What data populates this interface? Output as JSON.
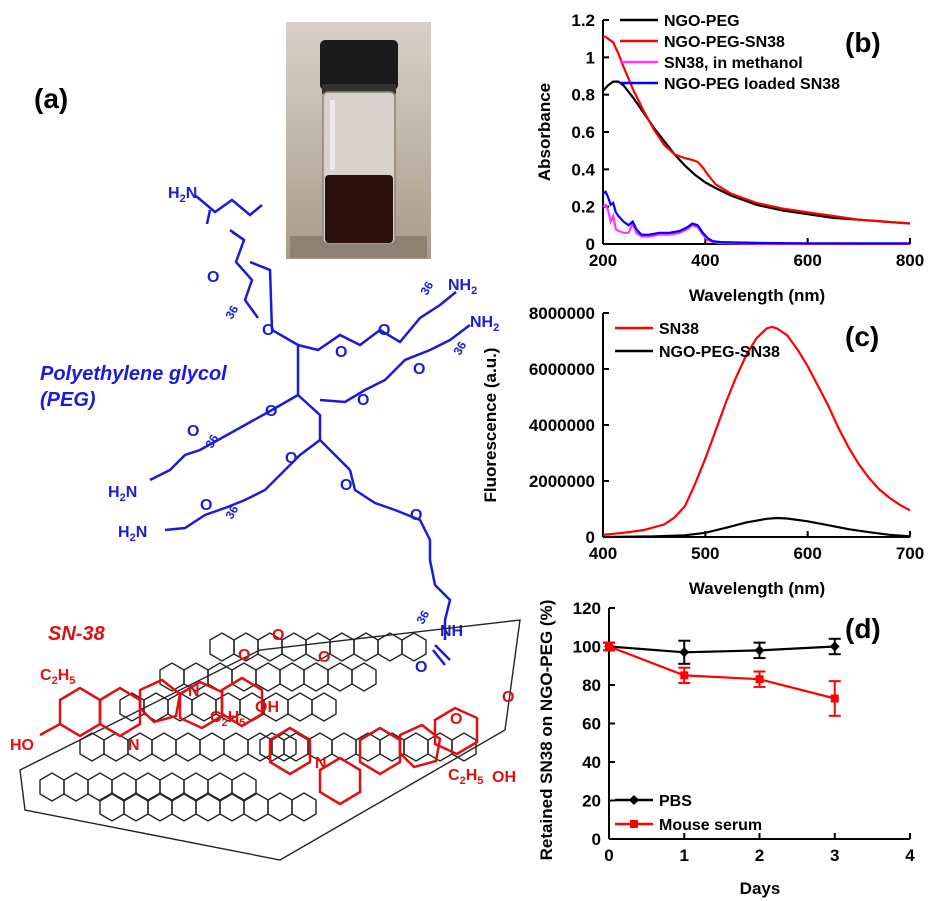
{
  "panel_a": {
    "label": "(a)",
    "peg_label_line1": "Polyethylene glycol",
    "peg_label_line2": "(PEG)",
    "sn38_label": "SN-38",
    "repeat_unit": "36",
    "amine_h2n": "H",
    "amine_suffix": "N",
    "nh": "NH",
    "o": "O",
    "oh": "OH",
    "ho": "HO",
    "n": "N",
    "ethyl": "C",
    "ethyl_sub1": "2",
    "ethyl_sub2": "H",
    "ethyl_sub3": "5",
    "colors": {
      "peg": "#1b1bd6",
      "sn38": "#e01010",
      "graphene": "#222222",
      "vial_liquid": "#2a0f0a",
      "vial_cap": "#1a1a1a"
    }
  },
  "chart_data": [
    {
      "panel": "(b)",
      "type": "line",
      "xlabel": "Wavelength (nm)",
      "ylabel": "Absorbance",
      "xlim": [
        200,
        800
      ],
      "ylim": [
        0,
        1.2
      ],
      "xticks": [
        "200",
        "400",
        "600",
        "800"
      ],
      "yticks": [
        "0",
        "0.2",
        "0.4",
        "0.6",
        "0.8",
        "1",
        "1.2"
      ],
      "legend_position": "top-left",
      "series": [
        {
          "name": "NGO-PEG",
          "color": "#000000",
          "x": [
            200,
            210,
            220,
            230,
            240,
            260,
            280,
            300,
            320,
            340,
            360,
            380,
            400,
            420,
            450,
            500,
            550,
            600,
            650,
            700,
            750,
            800
          ],
          "y": [
            0.82,
            0.85,
            0.87,
            0.87,
            0.85,
            0.78,
            0.7,
            0.62,
            0.55,
            0.48,
            0.42,
            0.37,
            0.33,
            0.3,
            0.26,
            0.21,
            0.18,
            0.16,
            0.14,
            0.13,
            0.12,
            0.11
          ]
        },
        {
          "name": "NGO-PEG-SN38",
          "color": "#ff0000",
          "x": [
            200,
            205,
            210,
            220,
            230,
            240,
            260,
            280,
            300,
            320,
            340,
            360,
            375,
            385,
            395,
            405,
            420,
            450,
            500,
            550,
            600,
            650,
            700,
            750,
            800
          ],
          "y": [
            1.11,
            1.11,
            1.1,
            1.08,
            1.02,
            0.95,
            0.82,
            0.71,
            0.61,
            0.53,
            0.48,
            0.46,
            0.45,
            0.44,
            0.41,
            0.37,
            0.32,
            0.27,
            0.22,
            0.19,
            0.17,
            0.15,
            0.13,
            0.12,
            0.11
          ]
        },
        {
          "name": "SN38, in methanol",
          "color": "#ff33ff",
          "x": [
            200,
            205,
            210,
            215,
            220,
            225,
            230,
            240,
            250,
            258,
            265,
            275,
            290,
            310,
            330,
            350,
            365,
            375,
            385,
            395,
            405,
            415,
            430,
            460,
            500,
            600,
            700,
            800
          ],
          "y": [
            0.2,
            0.21,
            0.18,
            0.12,
            0.15,
            0.08,
            0.07,
            0.06,
            0.06,
            0.11,
            0.06,
            0.04,
            0.04,
            0.05,
            0.05,
            0.06,
            0.08,
            0.1,
            0.09,
            0.05,
            0.02,
            0.01,
            0.005,
            0.003,
            0.002,
            0.001,
            0.001,
            0.001
          ]
        },
        {
          "name": "NGO-PEG loaded SN38",
          "color": "#0000ff",
          "x": [
            200,
            205,
            210,
            215,
            220,
            225,
            230,
            240,
            250,
            258,
            265,
            275,
            290,
            310,
            330,
            350,
            365,
            375,
            385,
            395,
            405,
            415,
            430,
            460,
            500,
            600,
            700,
            800
          ],
          "y": [
            0.27,
            0.28,
            0.25,
            0.21,
            0.22,
            0.17,
            0.15,
            0.12,
            0.1,
            0.12,
            0.08,
            0.05,
            0.05,
            0.06,
            0.06,
            0.07,
            0.09,
            0.11,
            0.1,
            0.06,
            0.03,
            0.015,
            0.01,
            0.008,
            0.006,
            0.004,
            0.003,
            0.003
          ]
        }
      ]
    },
    {
      "panel": "(c)",
      "type": "line",
      "xlabel": "Wavelength (nm)",
      "ylabel": "Fluorescence (a.u.)",
      "xlim": [
        400,
        700
      ],
      "ylim": [
        0,
        8000000
      ],
      "xticks": [
        "400",
        "500",
        "600",
        "700"
      ],
      "yticks": [
        "0",
        "2000000",
        "4000000",
        "6000000",
        "8000000"
      ],
      "legend_position": "top-left",
      "series": [
        {
          "name": "SN38",
          "color": "#ff0000",
          "x": [
            400,
            420,
            440,
            460,
            470,
            480,
            490,
            500,
            510,
            520,
            530,
            540,
            550,
            560,
            565,
            570,
            580,
            590,
            600,
            610,
            620,
            630,
            640,
            650,
            660,
            670,
            680,
            690,
            700
          ],
          "y": [
            80000,
            150000,
            250000,
            450000,
            700000,
            1100000,
            1900000,
            2800000,
            3800000,
            4800000,
            5700000,
            6500000,
            7100000,
            7450000,
            7500000,
            7450000,
            7200000,
            6700000,
            6100000,
            5400000,
            4700000,
            3900000,
            3200000,
            2600000,
            2100000,
            1700000,
            1400000,
            1150000,
            950000
          ]
        },
        {
          "name": "NGO-PEG-SN38",
          "color": "#000000",
          "x": [
            400,
            450,
            480,
            500,
            520,
            540,
            560,
            570,
            580,
            600,
            620,
            640,
            660,
            680,
            700
          ],
          "y": [
            0,
            20000,
            60000,
            150000,
            330000,
            520000,
            650000,
            680000,
            660000,
            560000,
            420000,
            280000,
            170000,
            80000,
            20000
          ]
        }
      ]
    },
    {
      "panel": "(d)",
      "type": "line",
      "xlabel": "Days",
      "ylabel": "Retained SN38 on NGO-PEG (%)",
      "xlim": [
        0,
        4
      ],
      "ylim": [
        0,
        120
      ],
      "xticks": [
        "0",
        "1",
        "2",
        "3",
        "4"
      ],
      "yticks": [
        "0",
        "20",
        "40",
        "60",
        "80",
        "100",
        "120"
      ],
      "legend_position": "bottom-left",
      "series": [
        {
          "name": "PBS",
          "color": "#000000",
          "marker": "diamond",
          "x": [
            0,
            1,
            2,
            3
          ],
          "y": [
            100,
            97,
            98,
            100
          ],
          "err": [
            2,
            6,
            4,
            4
          ]
        },
        {
          "name": "Mouse serum",
          "color": "#ff0000",
          "marker": "square",
          "x": [
            0,
            1,
            2,
            3
          ],
          "y": [
            100,
            85,
            83,
            73
          ],
          "err": [
            2,
            4,
            4,
            9
          ]
        }
      ]
    }
  ]
}
